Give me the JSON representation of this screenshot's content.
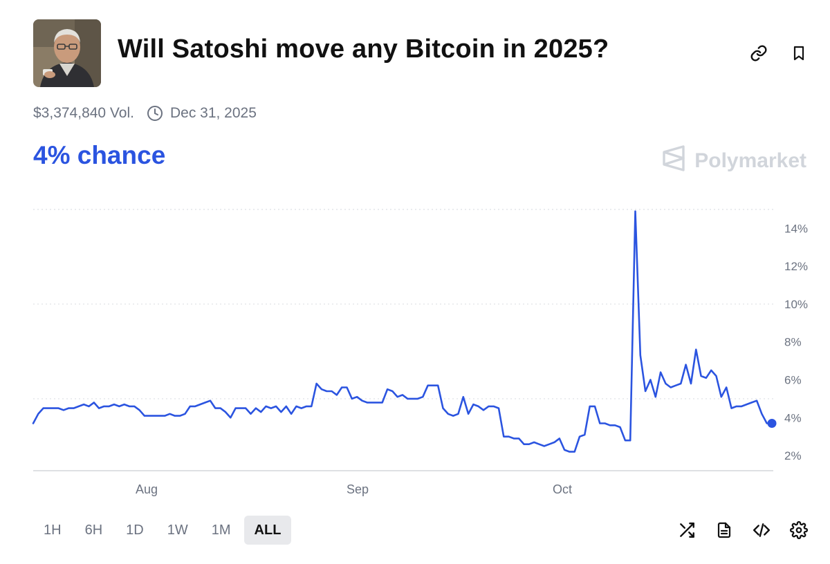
{
  "market": {
    "title": "Will Satoshi move any Bitcoin in 2025?",
    "volume": "$3,374,840 Vol.",
    "end_date": "Dec 31, 2025",
    "chance": "4% chance",
    "brand": "Polymarket",
    "accent_color": "#2b54e0"
  },
  "header_icons": [
    "link-icon",
    "bookmark-icon"
  ],
  "toolbar": {
    "ranges": [
      "1H",
      "6H",
      "1D",
      "1W",
      "1M",
      "ALL"
    ],
    "active_range": "ALL",
    "icons": [
      "shuffle-icon",
      "document-icon",
      "code-icon",
      "settings-icon"
    ]
  },
  "chart_data": {
    "type": "line",
    "title": "",
    "xlabel": "",
    "ylabel": "",
    "x_tick_labels": [
      "Aug",
      "Sep",
      "Oct"
    ],
    "y_tick_labels": [
      "2%",
      "4%",
      "6%",
      "8%",
      "10%",
      "12%",
      "14%"
    ],
    "y_ticks": [
      2,
      4,
      6,
      8,
      10,
      12,
      14
    ],
    "ylim": [
      1.2,
      15
    ],
    "grid": "horizontal dotted",
    "line_color": "#2b54e0",
    "series": [
      {
        "values": [
          3.7,
          4.2,
          4.5,
          4.5,
          4.5,
          4.5,
          4.4,
          4.5,
          4.5,
          4.6,
          4.7,
          4.6,
          4.8,
          4.5,
          4.6,
          4.6,
          4.7,
          4.6,
          4.7,
          4.6,
          4.6,
          4.4,
          4.1,
          4.1,
          4.1,
          4.1,
          4.1,
          4.2,
          4.1,
          4.1,
          4.2,
          4.6,
          4.6,
          4.7,
          4.8,
          4.9,
          4.5,
          4.5,
          4.3,
          4.0,
          4.5,
          4.5,
          4.5,
          4.2,
          4.5,
          4.3,
          4.6,
          4.5,
          4.6,
          4.3,
          4.6,
          4.2,
          4.6,
          4.5,
          4.6,
          4.6,
          5.8,
          5.5,
          5.4,
          5.4,
          5.2,
          5.6,
          5.6,
          5.0,
          5.1,
          4.9,
          4.8,
          4.8,
          4.8,
          4.8,
          5.5,
          5.4,
          5.1,
          5.2,
          5.0,
          5.0,
          5.0,
          5.1,
          5.7,
          5.7,
          5.7,
          4.5,
          4.2,
          4.1,
          4.2,
          5.1,
          4.2,
          4.7,
          4.6,
          4.4,
          4.6,
          4.6,
          4.5,
          3.0,
          3.0,
          2.9,
          2.9,
          2.6,
          2.6,
          2.7,
          2.6,
          2.5,
          2.6,
          2.7,
          2.9,
          2.3,
          2.2,
          2.2,
          3.0,
          3.1,
          4.6,
          4.6,
          3.7,
          3.7,
          3.6,
          3.6,
          3.5,
          2.8,
          2.8,
          14.9,
          7.3,
          5.4,
          6.0,
          5.1,
          6.4,
          5.8,
          5.6,
          5.7,
          5.8,
          6.8,
          5.8,
          7.6,
          6.2,
          6.1,
          6.5,
          6.2,
          5.1,
          5.6,
          4.5,
          4.6,
          4.6,
          4.7,
          4.8,
          4.9,
          4.2,
          3.7,
          3.7
        ]
      }
    ]
  }
}
